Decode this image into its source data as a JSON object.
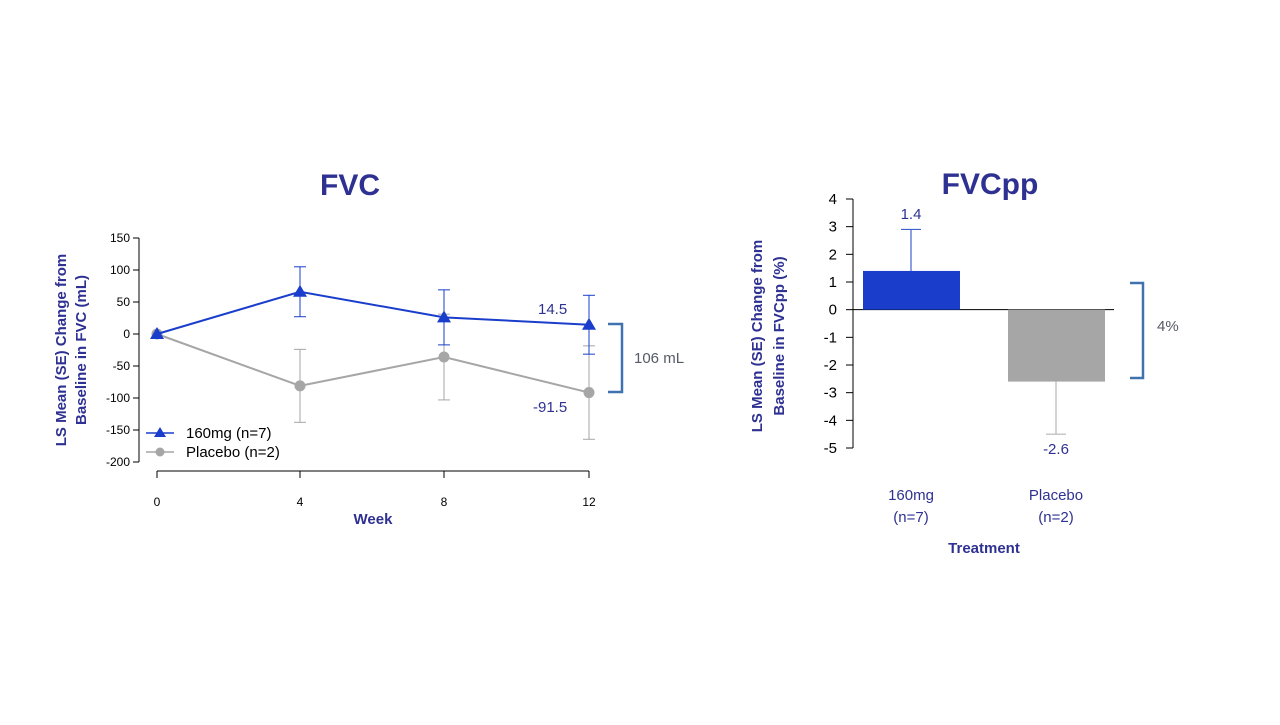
{
  "chart_data": [
    {
      "type": "line",
      "title": "FVC",
      "xlabel": "Week",
      "ylabel": [
        "LS Mean (SE) Change from",
        "Baseline in FVC (mL)"
      ],
      "x": [
        0,
        4,
        8,
        12
      ],
      "xticks": [
        "0",
        "4",
        "8",
        "12"
      ],
      "yticks": [
        "150",
        "100",
        "50",
        "0",
        "-50",
        "-100",
        "-150",
        "-200"
      ],
      "ylim": [
        -200,
        150
      ],
      "series": [
        {
          "name": "160mg (n=7)",
          "color": "#1a3ecb",
          "marker": "triangle",
          "values": [
            0,
            66,
            26,
            14.5
          ],
          "se": [
            0,
            39,
            43,
            46
          ]
        },
        {
          "name": "Placebo (n=2)",
          "color": "#a6a6a6",
          "marker": "circle",
          "values": [
            0,
            -81,
            -36,
            -91.5
          ],
          "se": [
            0,
            57,
            67,
            73
          ]
        }
      ],
      "data_labels": [
        "14.5",
        "-91.5"
      ],
      "annotation": "106 mL",
      "legend": "bottom-left"
    },
    {
      "type": "bar",
      "title": "FVCpp",
      "xlabel": "Treatment",
      "ylabel": [
        "LS Mean (SE) Change from",
        "Baseline in FVCpp (%)"
      ],
      "categories": [
        [
          "160mg",
          "(n=7)"
        ],
        [
          "Placebo",
          "(n=2)"
        ]
      ],
      "values": [
        1.4,
        -2.6
      ],
      "se": [
        1.5,
        1.9
      ],
      "colors": [
        "#1a3ecb",
        "#a6a6a6"
      ],
      "yticks": [
        "4",
        "3",
        "2",
        "1",
        "0",
        "-1",
        "-2",
        "-3",
        "-4",
        "-5"
      ],
      "ylim": [
        -5,
        4
      ],
      "data_labels": [
        "1.4",
        "-2.6"
      ],
      "annotation": "4%"
    }
  ]
}
